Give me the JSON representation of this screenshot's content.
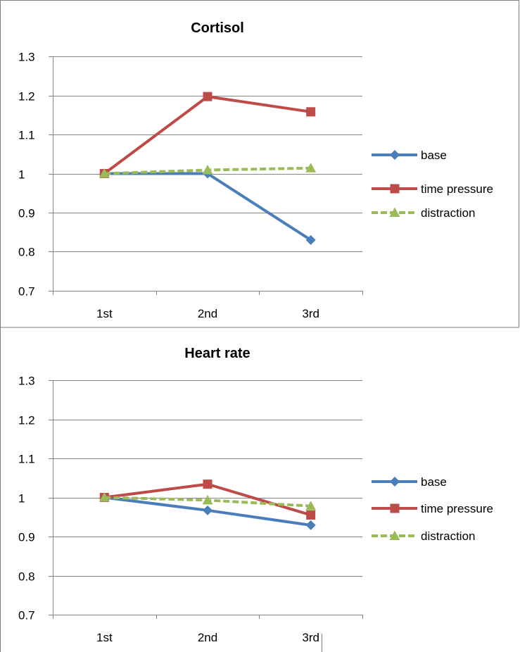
{
  "chart_data": [
    {
      "type": "line",
      "title": "Cortisol",
      "categories": [
        "1st",
        "2nd",
        "3rd"
      ],
      "ylim": [
        0.7,
        1.3
      ],
      "yticks": [
        0.7,
        0.8,
        0.9,
        1,
        1.1,
        1.2,
        1.3
      ],
      "grid": true,
      "legend_position": "right",
      "series": [
        {
          "name": "base",
          "values": [
            1.0,
            1.0,
            0.83
          ],
          "color": "#4a7ebb",
          "marker": "diamond",
          "dash": false
        },
        {
          "name": "time pressure",
          "values": [
            1.0,
            1.197,
            1.158
          ],
          "color": "#be4b48",
          "marker": "square",
          "dash": false
        },
        {
          "name": "distraction",
          "values": [
            1.0,
            1.009,
            1.014
          ],
          "color": "#9bbb59",
          "marker": "triangle",
          "dash": true
        }
      ]
    },
    {
      "type": "line",
      "title": "Heart rate",
      "categories": [
        "1st",
        "2nd",
        "3rd"
      ],
      "ylim": [
        0.7,
        1.3
      ],
      "yticks": [
        0.7,
        0.8,
        0.9,
        1,
        1.1,
        1.2,
        1.3
      ],
      "grid": true,
      "legend_position": "right",
      "series": [
        {
          "name": "base",
          "values": [
            1.0,
            0.967,
            0.929
          ],
          "color": "#4a7ebb",
          "marker": "diamond",
          "dash": false
        },
        {
          "name": "time pressure",
          "values": [
            1.0,
            1.034,
            0.955
          ],
          "color": "#be4b48",
          "marker": "square",
          "dash": false
        },
        {
          "name": "distraction",
          "values": [
            1.0,
            0.993,
            0.978
          ],
          "color": "#9bbb59",
          "marker": "triangle",
          "dash": true
        }
      ]
    }
  ]
}
